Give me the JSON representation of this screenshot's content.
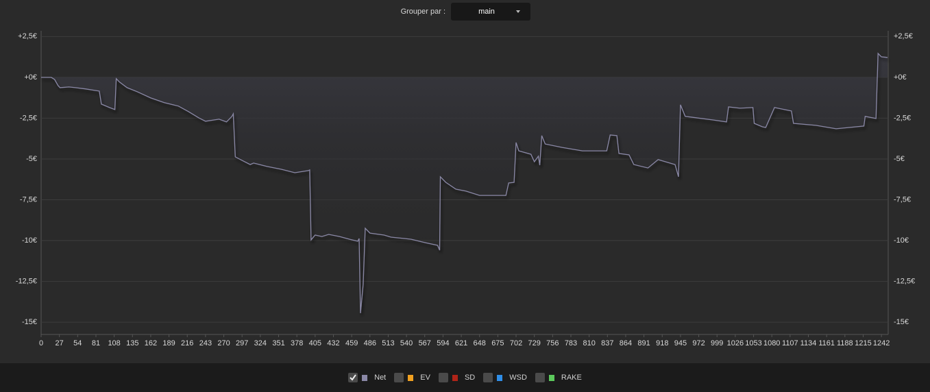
{
  "controls": {
    "group_by_label": "Grouper par :",
    "group_by_value": "main"
  },
  "chart_data": {
    "type": "line",
    "x": [
      0,
      15,
      20,
      25,
      28,
      41,
      51,
      66,
      86,
      89,
      101,
      109,
      111,
      116,
      127,
      142,
      162,
      182,
      203,
      218,
      233,
      243,
      263,
      274,
      282,
      284,
      287,
      299,
      309,
      314,
      334,
      355,
      375,
      395,
      397,
      399,
      405,
      415,
      425,
      441,
      456,
      468,
      470,
      472,
      476,
      479,
      486,
      507,
      517,
      537,
      547,
      568,
      586,
      589,
      590,
      598,
      613,
      628,
      648,
      669,
      687,
      691,
      699,
      702,
      706,
      724,
      729,
      735,
      737,
      740,
      745,
      770,
      800,
      836,
      841,
      851,
      854,
      869,
      876,
      897,
      912,
      937,
      942,
      945,
      952,
      993,
      1013,
      1016,
      1033,
      1052,
      1054,
      1066,
      1071,
      1084,
      1109,
      1112,
      1145,
      1175,
      1216,
      1218,
      1234,
      1237,
      1242,
      1251
    ],
    "series": [
      {
        "name": "Net",
        "color": "#8a88a6",
        "checked": true,
        "values": [
          0,
          0,
          -0.13,
          -0.5,
          -0.63,
          -0.59,
          -0.63,
          -0.71,
          -0.84,
          -1.64,
          -1.85,
          -1.97,
          -0.08,
          -0.29,
          -0.63,
          -0.88,
          -1.26,
          -1.55,
          -1.76,
          -2.1,
          -2.48,
          -2.69,
          -2.56,
          -2.73,
          -2.39,
          -2.23,
          -4.87,
          -5.13,
          -5.34,
          -5.25,
          -5.46,
          -5.63,
          -5.84,
          -5.71,
          -5.67,
          -9.96,
          -9.66,
          -9.75,
          -9.62,
          -9.75,
          -9.92,
          -10.04,
          -9.87,
          -14.45,
          -12.69,
          -9.24,
          -9.54,
          -9.66,
          -9.79,
          -9.87,
          -9.92,
          -10.13,
          -10.29,
          -10.59,
          -6.09,
          -6.43,
          -6.85,
          -6.97,
          -7.23,
          -7.23,
          -7.23,
          -6.47,
          -6.43,
          -3.99,
          -4.5,
          -4.71,
          -5.17,
          -4.83,
          -5.38,
          -3.57,
          -4.08,
          -4.29,
          -4.5,
          -4.5,
          -3.53,
          -3.57,
          -4.66,
          -4.75,
          -5.34,
          -5.55,
          -5.04,
          -5.34,
          -6.09,
          -1.68,
          -2.39,
          -2.61,
          -2.73,
          -1.81,
          -1.89,
          -1.85,
          -2.82,
          -3.03,
          -3.07,
          -1.85,
          -2.06,
          -2.82,
          -2.94,
          -3.15,
          -2.98,
          -2.39,
          -2.52,
          1.47,
          1.26,
          1.22
        ]
      },
      {
        "name": "EV",
        "color": "#f0a020",
        "checked": false
      },
      {
        "name": "SD",
        "color": "#b02418",
        "checked": false
      },
      {
        "name": "WSD",
        "color": "#2f8ee8",
        "checked": false
      },
      {
        "name": "RAKE",
        "color": "#5cc95c",
        "checked": false
      }
    ],
    "xlim": [
      0,
      1252
    ],
    "ylim": [
      -15.75,
      2.85
    ],
    "xticks": [
      0,
      27,
      54,
      81,
      108,
      135,
      162,
      189,
      216,
      243,
      270,
      297,
      324,
      351,
      378,
      405,
      432,
      459,
      486,
      513,
      540,
      567,
      594,
      621,
      648,
      675,
      702,
      729,
      756,
      783,
      810,
      837,
      864,
      891,
      918,
      945,
      972,
      999,
      1026,
      1053,
      1080,
      1107,
      1134,
      1161,
      1188,
      1215,
      1242
    ],
    "yticks": [
      {
        "value": 2.5,
        "label": "+2,5€"
      },
      {
        "value": 0,
        "label": "+0€"
      },
      {
        "value": -2.5,
        "label": "-2,5€"
      },
      {
        "value": -5,
        "label": "-5€"
      },
      {
        "value": -7.5,
        "label": "-7,5€"
      },
      {
        "value": -10,
        "label": "-10€"
      },
      {
        "value": -12.5,
        "label": "-12,5€"
      },
      {
        "value": -15,
        "label": "-15€"
      }
    ],
    "grid": true
  }
}
